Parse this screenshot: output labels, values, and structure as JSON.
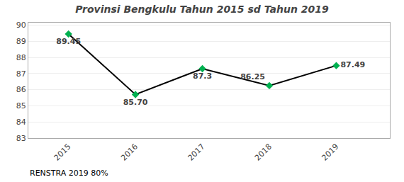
{
  "chart_data": {
    "type": "line",
    "title": "Provinsi Bengkulu Tahun 2015 sd Tahun 2019",
    "x": [
      2015,
      2016,
      2017,
      2018,
      2019
    ],
    "values": [
      89.45,
      85.7,
      87.3,
      86.25,
      87.49
    ],
    "value_labels": [
      "89.45",
      "85.70",
      "87.3",
      "86.25",
      "87.49"
    ],
    "data_labels": true,
    "color": "#000000",
    "colors": [
      "#00b050",
      "#00b050",
      "#00b050",
      "#00b050",
      "#00b050"
    ],
    "marker": "diamond",
    "xlim": [
      2014.4,
      2019.8
    ],
    "xticks": [
      2015,
      2016,
      2017,
      2018,
      2019
    ],
    "ylim": [
      83,
      90.15
    ],
    "yticks": [
      83,
      84,
      85,
      86,
      87,
      88,
      89,
      90
    ],
    "grid": true,
    "annotations": [
      "RENSTRA 2019 80%"
    ]
  }
}
